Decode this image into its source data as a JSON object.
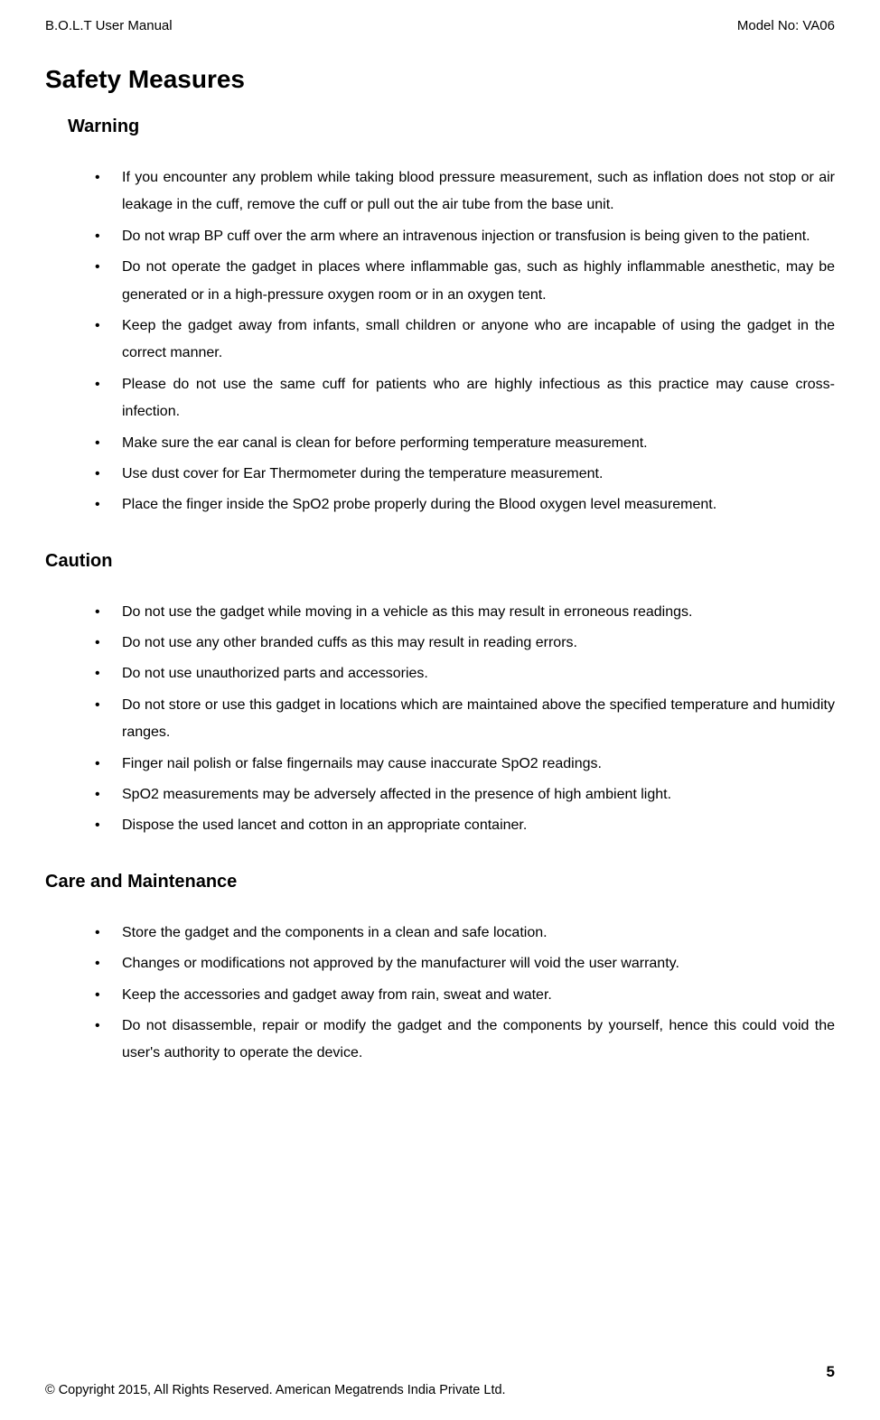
{
  "header": {
    "left": "B.O.L.T User Manual",
    "right": "Model No: VA06"
  },
  "title": "Safety Measures",
  "sections": [
    {
      "heading": "Warning",
      "indent": true,
      "items": [
        "If you encounter any problem while taking blood pressure measurement, such as inflation does not stop or air leakage in the cuff, remove the cuff or pull out the air tube from the base unit.",
        "Do not wrap BP cuff over the arm where an intravenous injection or transfusion is being given to the patient.",
        "Do not operate the gadget in places where inflammable gas, such as highly inflammable anesthetic, may be generated or in a high-pressure oxygen room or in an oxygen tent.",
        "Keep the gadget away from infants, small children or anyone who are incapable of using the gadget in the correct manner.",
        "Please do not use the same cuff for patients who are highly infectious as this practice may cause cross-infection.",
        "Make sure the ear canal is clean for before performing temperature measurement.",
        "Use dust cover for Ear Thermometer during the temperature measurement.",
        "Place the finger inside the SpO2 probe properly during the Blood oxygen level measurement."
      ]
    },
    {
      "heading": "Caution",
      "indent": false,
      "items": [
        "Do not use the gadget while moving in a vehicle as this may result in erroneous readings.",
        "Do not use any other branded cuffs as this may result in reading errors.",
        "Do not use unauthorized parts and accessories.",
        "Do not store or use this gadget in locations which are maintained above the specified temperature and humidity ranges.",
        "Finger nail polish or false fingernails may cause inaccurate SpO2 readings.",
        "SpO2 measurements may be adversely affected in the presence of high ambient light.",
        "Dispose the used lancet and cotton in an appropriate container."
      ]
    },
    {
      "heading": "Care and Maintenance",
      "indent": false,
      "items": [
        "Store the gadget and the components in a clean and safe location.",
        "Changes or modifications not approved by the manufacturer will void the user warranty.",
        "Keep the accessories and gadget away from rain, sweat and water.",
        "Do not disassemble, repair or modify the gadget and the components by yourself, hence this could void the user's authority to operate the device."
      ]
    }
  ],
  "footer": {
    "page": "5",
    "copyright": "© Copyright 2015, All Rights Reserved. American Megatrends India Private Ltd."
  }
}
